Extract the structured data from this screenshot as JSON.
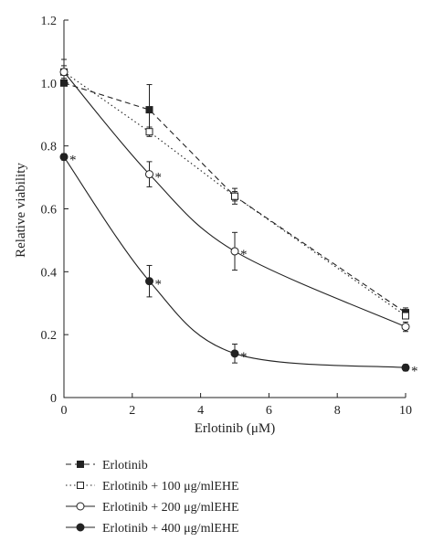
{
  "chart_data": {
    "type": "line",
    "xlabel": "Erlotinib (μM)",
    "ylabel": "Relative viability",
    "xlim": [
      0,
      10
    ],
    "ylim": [
      0,
      1.2
    ],
    "xticks": [
      0,
      2,
      4,
      6,
      8,
      10
    ],
    "yticks": [
      0,
      0.2,
      0.4,
      0.6,
      0.8,
      1.0,
      1.2
    ],
    "ytick_labels": [
      "0",
      "0.2",
      "0.4",
      "0.6",
      "0.8",
      "1.0",
      "1.2"
    ],
    "grid": false,
    "legend_position": "bottom",
    "x": [
      0,
      2.5,
      5,
      10
    ],
    "series": [
      {
        "name": "Erlotinib",
        "values": [
          1.0,
          0.915,
          0.64,
          0.27
        ],
        "errors": [
          0.0,
          0.08,
          0.025,
          0.015
        ],
        "line_style": "dashed",
        "marker": "square-filled",
        "significant": [
          false,
          false,
          false,
          false
        ]
      },
      {
        "name": "Erlotinib + 100 μg/mlEHE",
        "values": [
          1.035,
          0.845,
          0.64,
          0.26
        ],
        "errors": [
          0.04,
          0.015,
          0.015,
          0.01
        ],
        "line_style": "dotted",
        "marker": "square-open",
        "significant": [
          false,
          false,
          false,
          false
        ]
      },
      {
        "name": "Erlotinib + 200 μg/mlEHE",
        "values": [
          1.035,
          0.71,
          0.465,
          0.225
        ],
        "errors": [
          0.02,
          0.04,
          0.06,
          0.015
        ],
        "line_style": "solid",
        "marker": "circle-open",
        "significant": [
          false,
          true,
          true,
          false
        ]
      },
      {
        "name": "Erlotinib + 400 μg/mlEHE",
        "values": [
          0.765,
          0.37,
          0.14,
          0.095
        ],
        "errors": [
          0.01,
          0.05,
          0.03,
          0.01
        ],
        "line_style": "solid",
        "marker": "circle-filled",
        "significant": [
          true,
          true,
          true,
          true
        ]
      }
    ],
    "significance_marker": "*"
  }
}
